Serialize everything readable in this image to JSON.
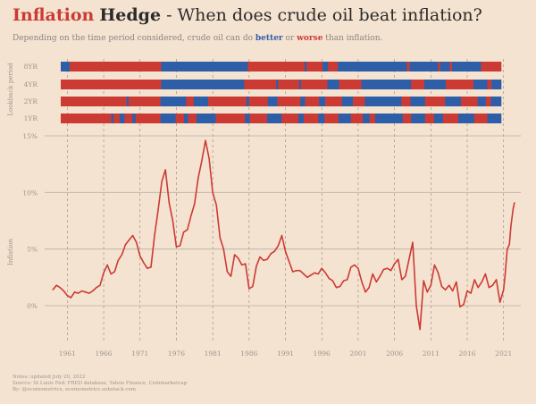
{
  "title": {
    "part1": "Inflation",
    "part2": "Hedge",
    "part3": " - When does crude oil beat inflation?"
  },
  "subtitle": {
    "prefix": "Depending on the time period considered, crude oil can do ",
    "better": "better",
    "mid": " or ",
    "worse": "worse",
    "suffix": " than inflation."
  },
  "notes": {
    "line1": "Notes: updated July 20, 2022",
    "line2": "Source: St Louis Fed: FRED database, Yahoo Finance, Coinmarketcap",
    "line3": "By: @ecoinometrics, ecoinometrics.substack.com"
  },
  "colors": {
    "background": "#f5e3d1",
    "better": "#2f5ea8",
    "worse": "#cc3a34",
    "line": "#cc3a34",
    "grid": "#b9aea3",
    "axis_text": "#9a948d"
  },
  "chart_data": [
    {
      "type": "heatmap",
      "ylabel": "Lookback period",
      "x_range": [
        1959,
        2022.6
      ],
      "rows": [
        {
          "label": "8YR",
          "segments": [
            [
              1959,
              1960.3,
              "better"
            ],
            [
              1960.3,
              1973.5,
              "worse"
            ],
            [
              1973.5,
              1986,
              "better"
            ],
            [
              1986,
              1994.2,
              "worse"
            ],
            [
              1994.2,
              1994.5,
              "better"
            ],
            [
              1994.5,
              1996.8,
              "worse"
            ],
            [
              1996.8,
              1997.6,
              "better"
            ],
            [
              1997.6,
              1999,
              "worse"
            ],
            [
              1999,
              2009,
              "better"
            ],
            [
              2009,
              2009.4,
              "worse"
            ],
            [
              2009.4,
              2013.5,
              "better"
            ],
            [
              2013.5,
              2013.8,
              "worse"
            ],
            [
              2013.8,
              2015.2,
              "better"
            ],
            [
              2015.2,
              2015.5,
              "worse"
            ],
            [
              2015.5,
              2019.7,
              "better"
            ],
            [
              2019.7,
              2022.6,
              "worse"
            ]
          ]
        },
        {
          "label": "4YR",
          "segments": [
            [
              1959,
              1973.5,
              "worse"
            ],
            [
              1973.5,
              1985.5,
              "better"
            ],
            [
              1985.5,
              1990.1,
              "worse"
            ],
            [
              1990.1,
              1990.4,
              "better"
            ],
            [
              1990.4,
              1993.4,
              "worse"
            ],
            [
              1993.4,
              1993.7,
              "better"
            ],
            [
              1993.7,
              1997.5,
              "worse"
            ],
            [
              1997.5,
              1999.2,
              "better"
            ],
            [
              1999.2,
              2002.4,
              "worse"
            ],
            [
              2002.4,
              2009.6,
              "better"
            ],
            [
              2009.6,
              2011.5,
              "worse"
            ],
            [
              2011.5,
              2014.6,
              "better"
            ],
            [
              2014.6,
              2018.6,
              "worse"
            ],
            [
              2018.6,
              2020.6,
              "better"
            ],
            [
              2020.6,
              2021.2,
              "worse"
            ],
            [
              2021.2,
              2021.6,
              "better"
            ],
            [
              2021.6,
              2022.6,
              "better"
            ]
          ]
        },
        {
          "label": "2YR",
          "segments": [
            [
              1959,
              1968.5,
              "worse"
            ],
            [
              1968.5,
              1968.8,
              "better"
            ],
            [
              1968.8,
              1973.4,
              "worse"
            ],
            [
              1973.4,
              1977.1,
              "better"
            ],
            [
              1977.1,
              1978.2,
              "worse"
            ],
            [
              1978.2,
              1979.2,
              "better"
            ],
            [
              1979.2,
              1980.3,
              "better"
            ],
            [
              1980.3,
              1985.8,
              "worse"
            ],
            [
              1985.8,
              1986.2,
              "better"
            ],
            [
              1986.2,
              1988.9,
              "worse"
            ],
            [
              1988.9,
              1989.4,
              "better"
            ],
            [
              1989.4,
              1990.3,
              "better"
            ],
            [
              1990.3,
              1993.6,
              "worse"
            ],
            [
              1993.6,
              1994.3,
              "better"
            ],
            [
              1994.3,
              1996.3,
              "worse"
            ],
            [
              1996.3,
              1997.2,
              "better"
            ],
            [
              1997.2,
              1999.6,
              "worse"
            ],
            [
              1999.6,
              2001.2,
              "better"
            ],
            [
              2001.2,
              2002.9,
              "worse"
            ],
            [
              2002.9,
              2008.2,
              "better"
            ],
            [
              2008.2,
              2009.5,
              "worse"
            ],
            [
              2009.5,
              2011.6,
              "better"
            ],
            [
              2011.6,
              2014.5,
              "worse"
            ],
            [
              2014.5,
              2016.8,
              "better"
            ],
            [
              2016.8,
              2019.2,
              "worse"
            ],
            [
              2019.2,
              2020.4,
              "better"
            ],
            [
              2020.4,
              2021.1,
              "worse"
            ],
            [
              2021.1,
              2022.6,
              "better"
            ]
          ]
        },
        {
          "label": "1YR",
          "segments": [
            [
              1959,
              1966.3,
              "worse"
            ],
            [
              1966.3,
              1966.6,
              "better"
            ],
            [
              1966.6,
              1967.5,
              "worse"
            ],
            [
              1967.5,
              1968.2,
              "better"
            ],
            [
              1968.2,
              1969.3,
              "worse"
            ],
            [
              1969.3,
              1969.8,
              "better"
            ],
            [
              1969.8,
              1973.4,
              "worse"
            ],
            [
              1973.4,
              1975.6,
              "better"
            ],
            [
              1975.6,
              1976.8,
              "worse"
            ],
            [
              1976.8,
              1977.4,
              "better"
            ],
            [
              1977.4,
              1978.6,
              "worse"
            ],
            [
              1978.6,
              1981.4,
              "better"
            ],
            [
              1981.4,
              1985.6,
              "worse"
            ],
            [
              1985.6,
              1986.3,
              "better"
            ],
            [
              1986.3,
              1988.8,
              "worse"
            ],
            [
              1988.8,
              1990.9,
              "better"
            ],
            [
              1990.9,
              1993.3,
              "worse"
            ],
            [
              1993.3,
              1994.1,
              "better"
            ],
            [
              1994.1,
              1996.2,
              "worse"
            ],
            [
              1996.2,
              1997.1,
              "better"
            ],
            [
              1997.1,
              1999.1,
              "worse"
            ],
            [
              1999.1,
              2000.9,
              "better"
            ],
            [
              2000.9,
              2002.6,
              "worse"
            ],
            [
              2002.6,
              2003.6,
              "better"
            ],
            [
              2003.6,
              2004.4,
              "worse"
            ],
            [
              2004.4,
              2008.4,
              "better"
            ],
            [
              2008.4,
              2009.6,
              "worse"
            ],
            [
              2009.6,
              2011.6,
              "better"
            ],
            [
              2011.6,
              2012.9,
              "worse"
            ],
            [
              2012.9,
              2014.2,
              "better"
            ],
            [
              2014.2,
              2016.4,
              "worse"
            ],
            [
              2016.4,
              2018.7,
              "better"
            ],
            [
              2018.7,
              2020.6,
              "worse"
            ],
            [
              2020.6,
              2022.6,
              "better"
            ]
          ]
        }
      ]
    },
    {
      "type": "line",
      "series_name": "Inflation",
      "ylabel": "Inflation",
      "xlabel": "",
      "xlim": [
        1958.5,
        2023
      ],
      "ylim": [
        -3,
        15
      ],
      "grid": true,
      "x_ticks": [
        1961,
        1966,
        1971,
        1976,
        1981,
        1986,
        1991,
        1996,
        2001,
        2006,
        2011,
        2016,
        2021
      ],
      "x_tick_labels": [
        "1961",
        "1966",
        "1971",
        "1976",
        "1981",
        "1986",
        "1991",
        "1996",
        "2001",
        "2006",
        "2011",
        "2016",
        "2021"
      ],
      "y_ticks": [
        0,
        5,
        10,
        15
      ],
      "y_tick_labels": [
        "0%",
        "5%",
        "10%",
        "15%"
      ],
      "x": [
        1959,
        1959.5,
        1960,
        1960.5,
        1961,
        1961.5,
        1962,
        1962.5,
        1963,
        1963.5,
        1964,
        1964.5,
        1965,
        1965.5,
        1966,
        1966.5,
        1967,
        1967.5,
        1968,
        1968.5,
        1969,
        1969.5,
        1970,
        1970.5,
        1971,
        1971.5,
        1972,
        1972.5,
        1973,
        1973.5,
        1974,
        1974.5,
        1975,
        1975.5,
        1976,
        1976.5,
        1977,
        1977.5,
        1978,
        1978.5,
        1979,
        1979.5,
        1980,
        1980.5,
        1981,
        1981.5,
        1982,
        1982.5,
        1983,
        1983.5,
        1984,
        1984.5,
        1985,
        1985.5,
        1986,
        1986.5,
        1987,
        1987.5,
        1988,
        1988.5,
        1989,
        1989.5,
        1990,
        1990.5,
        1991,
        1991.5,
        1992,
        1992.5,
        1993,
        1993.5,
        1994,
        1994.5,
        1995,
        1995.5,
        1996,
        1996.5,
        1997,
        1997.5,
        1998,
        1998.5,
        1999,
        1999.5,
        2000,
        2000.5,
        2001,
        2001.5,
        2002,
        2002.5,
        2003,
        2003.5,
        2004,
        2004.5,
        2005,
        2005.5,
        2006,
        2006.5,
        2007,
        2007.5,
        2008,
        2008.5,
        2009,
        2009.5,
        2010,
        2010.5,
        2011,
        2011.5,
        2012,
        2012.5,
        2013,
        2013.5,
        2014,
        2014.5,
        2015,
        2015.5,
        2016,
        2016.5,
        2017,
        2017.5,
        2018,
        2018.5,
        2019,
        2019.5,
        2020,
        2020.5,
        2021,
        2021.2,
        2021.5,
        2021.8,
        2022,
        2022.3,
        2022.5
      ],
      "y": [
        1.4,
        1.8,
        1.6,
        1.3,
        0.9,
        0.7,
        1.2,
        1.1,
        1.3,
        1.2,
        1.1,
        1.3,
        1.6,
        1.8,
        2.9,
        3.6,
        2.8,
        3.0,
        4.0,
        4.5,
        5.4,
        5.8,
        6.2,
        5.6,
        4.4,
        3.8,
        3.3,
        3.4,
        6.2,
        8.5,
        11.0,
        12.0,
        9.1,
        7.5,
        5.2,
        5.3,
        6.5,
        6.7,
        7.9,
        9.0,
        11.3,
        12.8,
        14.6,
        13.0,
        10.0,
        8.9,
        6.0,
        5.0,
        3.0,
        2.6,
        4.5,
        4.2,
        3.6,
        3.7,
        1.5,
        1.7,
        3.5,
        4.3,
        4.0,
        4.1,
        4.6,
        4.8,
        5.3,
        6.2,
        4.8,
        3.9,
        3.0,
        3.1,
        3.1,
        2.8,
        2.5,
        2.7,
        2.9,
        2.8,
        3.3,
        2.9,
        2.4,
        2.2,
        1.6,
        1.7,
        2.2,
        2.3,
        3.4,
        3.6,
        3.3,
        2.1,
        1.2,
        1.6,
        2.8,
        2.1,
        2.6,
        3.2,
        3.3,
        3.1,
        3.7,
        4.1,
        2.3,
        2.6,
        4.1,
        5.6,
        0.0,
        -2.1,
        2.2,
        1.2,
        1.8,
        3.6,
        2.9,
        1.7,
        1.4,
        1.8,
        1.3,
        2.1,
        -0.1,
        0.1,
        1.3,
        1.1,
        2.3,
        1.6,
        2.1,
        2.8,
        1.6,
        1.8,
        2.3,
        0.3,
        1.4,
        2.6,
        5.0,
        5.4,
        7.0,
        8.5,
        9.1
      ]
    }
  ]
}
